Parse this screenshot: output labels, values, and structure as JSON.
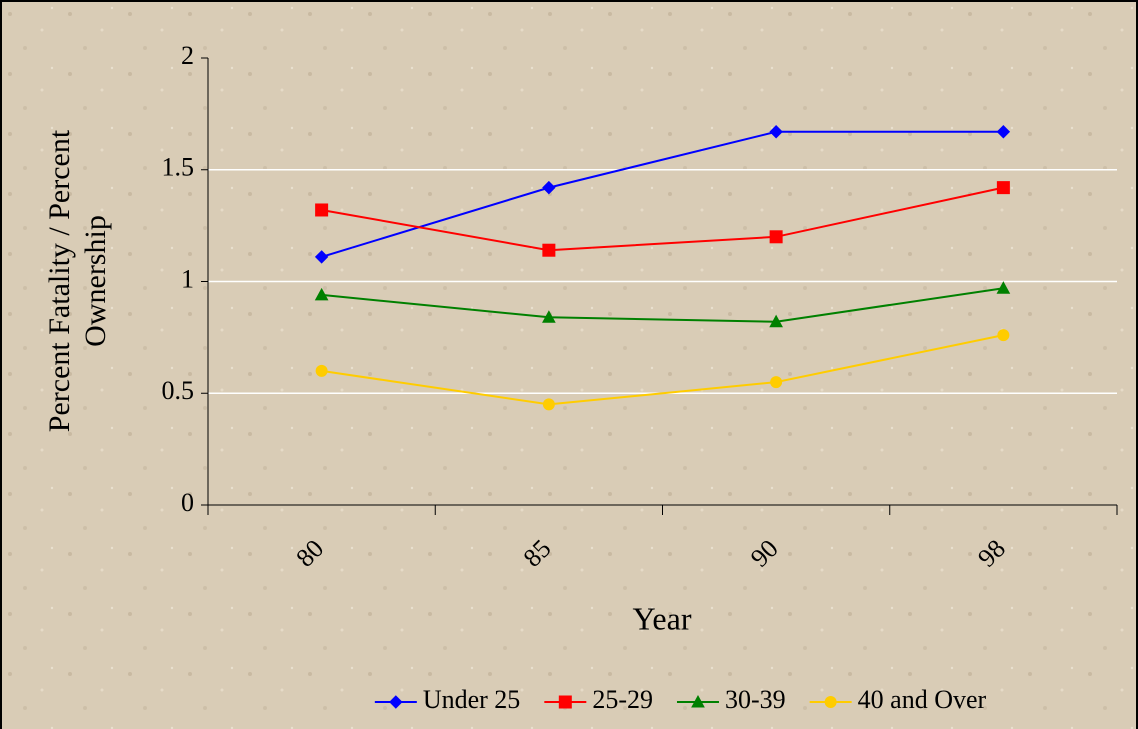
{
  "chart_data": {
    "type": "line",
    "ylabel": [
      "Percent Fatality / Percent",
      "Ownership"
    ],
    "xlabel": "Year",
    "categories": [
      "80",
      "85",
      "90",
      "98"
    ],
    "series": [
      {
        "name": "Under 25",
        "color": "#0000ff",
        "marker": "diamond",
        "values": [
          1.11,
          1.42,
          1.67,
          1.67
        ]
      },
      {
        "name": "25-29",
        "color": "#ff0000",
        "marker": "square",
        "values": [
          1.32,
          1.14,
          1.2,
          1.42
        ]
      },
      {
        "name": "30-39",
        "color": "#008000",
        "marker": "triangle",
        "values": [
          0.94,
          0.84,
          0.82,
          0.97
        ]
      },
      {
        "name": "40 and Over",
        "color": "#ffcc00",
        "marker": "circle",
        "values": [
          0.6,
          0.45,
          0.55,
          0.76
        ]
      }
    ],
    "ylim": [
      0,
      2
    ],
    "yticks": [
      0,
      0.5,
      1,
      1.5,
      2
    ],
    "grid": true,
    "legend": "bottom"
  }
}
